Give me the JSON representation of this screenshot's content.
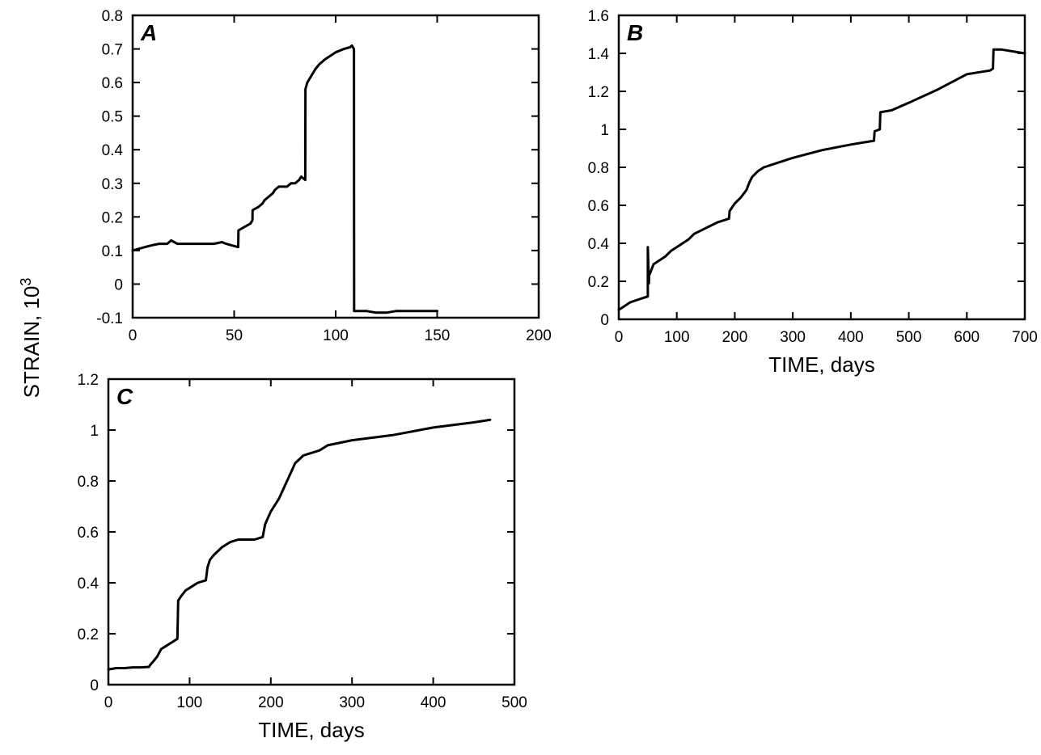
{
  "figure": {
    "ylabel": "STRAIN, 10",
    "ylabel_exponent": "3",
    "line_color": "#000000"
  },
  "chart_data": [
    {
      "type": "line",
      "panel": "A",
      "xlabel": "",
      "xlim": [
        0,
        200
      ],
      "ylim": [
        -0.1,
        0.8
      ],
      "xticks": [
        0,
        50,
        100,
        150,
        200
      ],
      "xtick_labels": [
        "0",
        "50",
        "100",
        "150",
        "200"
      ],
      "yticks": [
        -0.1,
        0,
        0.1,
        0.2,
        0.3,
        0.4,
        0.5,
        0.6,
        0.7,
        0.8
      ],
      "ytick_labels": [
        "-0.1",
        "0",
        "0.1",
        "0.2",
        "0.3",
        "0.4",
        "0.5",
        "0.6",
        "0.7",
        "0.8"
      ],
      "grid": false,
      "series": [
        {
          "x": [
            0,
            3,
            6,
            9,
            13,
            17,
            19,
            22,
            26,
            30,
            35,
            40,
            44,
            46,
            49,
            52,
            52.1,
            55,
            58,
            59,
            59.1,
            62,
            64,
            65,
            67,
            69,
            70,
            72,
            75,
            76,
            78,
            80,
            82,
            83,
            85,
            85.1,
            86,
            88,
            90,
            92,
            95,
            100,
            104,
            107,
            108,
            109,
            109.1,
            115,
            120,
            125,
            130,
            140,
            150
          ],
          "y": [
            0.1,
            0.105,
            0.11,
            0.115,
            0.12,
            0.12,
            0.13,
            0.12,
            0.12,
            0.12,
            0.12,
            0.12,
            0.125,
            0.12,
            0.115,
            0.11,
            0.16,
            0.17,
            0.18,
            0.19,
            0.22,
            0.23,
            0.24,
            0.25,
            0.26,
            0.27,
            0.28,
            0.29,
            0.29,
            0.29,
            0.3,
            0.3,
            0.31,
            0.32,
            0.31,
            0.58,
            0.6,
            0.62,
            0.64,
            0.655,
            0.67,
            0.69,
            0.7,
            0.705,
            0.71,
            0.7,
            -0.08,
            -0.08,
            -0.085,
            -0.085,
            -0.08,
            -0.08,
            -0.08
          ]
        }
      ]
    },
    {
      "type": "line",
      "panel": "B",
      "xlabel": "TIME, days",
      "xlim": [
        0,
        700
      ],
      "ylim": [
        0,
        1.6
      ],
      "xticks": [
        0,
        100,
        200,
        300,
        400,
        500,
        600,
        700
      ],
      "xtick_labels": [
        "0",
        "100",
        "200",
        "300",
        "400",
        "500",
        "600",
        "700"
      ],
      "yticks": [
        0,
        0.2,
        0.4,
        0.6,
        0.8,
        1.0,
        1.2,
        1.4,
        1.6
      ],
      "ytick_labels": [
        "0",
        "0.2",
        "0.4",
        "0.6",
        "0.8",
        "1",
        "1.2",
        "1.4",
        "1.6"
      ],
      "grid": false,
      "series": [
        {
          "x": [
            0,
            10,
            20,
            30,
            40,
            50,
            50.1,
            52,
            52.1,
            55,
            60,
            70,
            80,
            90,
            100,
            110,
            120,
            130,
            150,
            170,
            190,
            191,
            200,
            210,
            220,
            225,
            230,
            240,
            250,
            270,
            300,
            350,
            400,
            440,
            441,
            450,
            451,
            470,
            500,
            550,
            600,
            640,
            645,
            646,
            660,
            700
          ],
          "y": [
            0.05,
            0.07,
            0.09,
            0.1,
            0.11,
            0.12,
            0.38,
            0.19,
            0.23,
            0.25,
            0.29,
            0.31,
            0.33,
            0.36,
            0.38,
            0.4,
            0.42,
            0.45,
            0.48,
            0.51,
            0.53,
            0.57,
            0.61,
            0.64,
            0.68,
            0.72,
            0.75,
            0.78,
            0.8,
            0.82,
            0.85,
            0.89,
            0.92,
            0.94,
            0.99,
            1.0,
            1.09,
            1.1,
            1.14,
            1.21,
            1.29,
            1.31,
            1.32,
            1.42,
            1.42,
            1.4
          ]
        }
      ]
    },
    {
      "type": "line",
      "panel": "C",
      "xlabel": "TIME, days",
      "xlim": [
        0,
        500
      ],
      "ylim": [
        0,
        1.2
      ],
      "xticks": [
        0,
        100,
        200,
        300,
        400,
        500
      ],
      "xtick_labels": [
        "0",
        "100",
        "200",
        "300",
        "400",
        "500"
      ],
      "yticks": [
        0,
        0.2,
        0.4,
        0.6,
        0.8,
        1.0,
        1.2
      ],
      "ytick_labels": [
        "0",
        "0.2",
        "0.4",
        "0.6",
        "0.8",
        "1",
        "1.2"
      ],
      "grid": false,
      "series": [
        {
          "x": [
            0,
            10,
            20,
            30,
            40,
            50,
            52,
            55,
            60,
            65,
            70,
            75,
            80,
            85,
            86,
            90,
            95,
            100,
            110,
            120,
            122,
            125,
            130,
            140,
            150,
            160,
            170,
            180,
            190,
            193,
            200,
            210,
            220,
            230,
            240,
            250,
            260,
            270,
            300,
            350,
            400,
            450,
            470
          ],
          "y": [
            0.06,
            0.065,
            0.065,
            0.068,
            0.068,
            0.07,
            0.08,
            0.09,
            0.11,
            0.14,
            0.15,
            0.16,
            0.17,
            0.18,
            0.33,
            0.35,
            0.37,
            0.38,
            0.4,
            0.41,
            0.46,
            0.49,
            0.51,
            0.54,
            0.56,
            0.57,
            0.57,
            0.57,
            0.58,
            0.63,
            0.68,
            0.73,
            0.8,
            0.87,
            0.9,
            0.91,
            0.92,
            0.94,
            0.96,
            0.98,
            1.01,
            1.03,
            1.04
          ]
        }
      ]
    }
  ]
}
